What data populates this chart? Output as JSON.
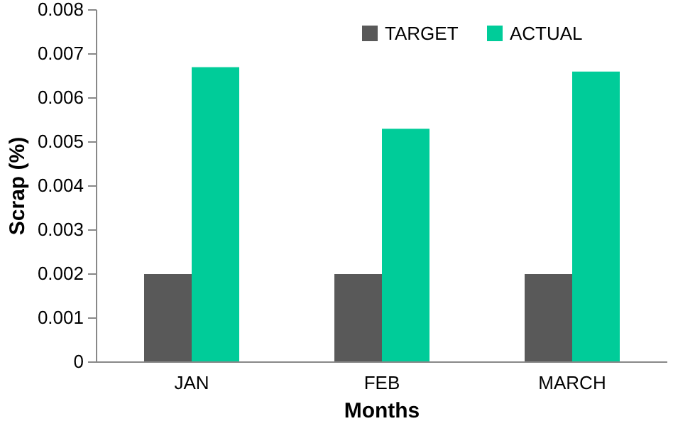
{
  "chart_data": {
    "type": "bar",
    "xlabel": "Months",
    "ylabel": "Scrap (%)",
    "categories": [
      "JAN",
      "FEB",
      "MARCH"
    ],
    "series": [
      {
        "name": "TARGET",
        "color": "#595959",
        "values": [
          0.002,
          0.002,
          0.002
        ]
      },
      {
        "name": "ACTUAL",
        "color": "#00cc99",
        "values": [
          0.0067,
          0.0053,
          0.0066
        ]
      }
    ],
    "ylim": [
      0,
      0.008
    ],
    "yticks": [
      0,
      0.001,
      0.002,
      0.003,
      0.004,
      0.005,
      0.006,
      0.007,
      0.008
    ],
    "grid": false,
    "legend": "top right"
  }
}
